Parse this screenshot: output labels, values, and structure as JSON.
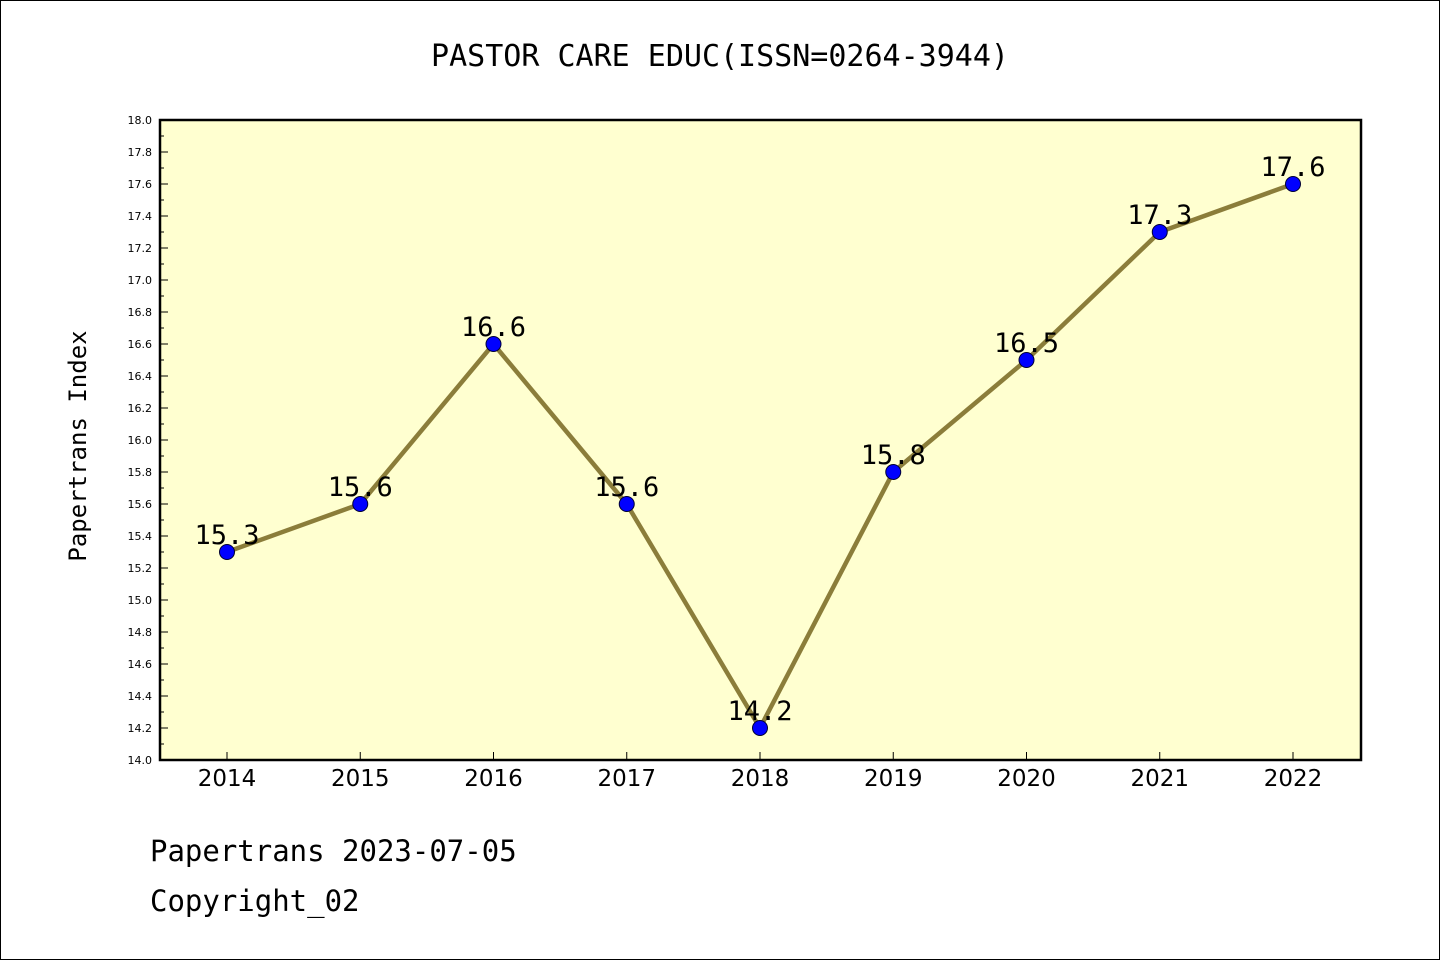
{
  "chart_data": {
    "type": "line",
    "title": "PASTOR CARE EDUC(ISSN=0264-3944)",
    "xlabel": "",
    "ylabel": "Papertrans Index",
    "categories": [
      "2014",
      "2015",
      "2016",
      "2017",
      "2018",
      "2019",
      "2020",
      "2021",
      "2022"
    ],
    "series": [
      {
        "values": [
          15.3,
          15.6,
          16.6,
          15.6,
          14.2,
          15.8,
          16.5,
          17.3,
          17.6
        ],
        "labels": [
          "15.3",
          "15.6",
          "16.6",
          "15.6",
          "14.2",
          "15.8",
          "16.5",
          "17.3",
          "17.6"
        ],
        "line_color": "#8b7d3a",
        "marker_color": "#0000ff"
      }
    ],
    "ylim": [
      14.0,
      18.0
    ],
    "y_ticks": [
      "14.0",
      "14.2",
      "14.4",
      "14.6",
      "14.8",
      "15.0",
      "15.2",
      "15.4",
      "15.6",
      "15.8",
      "16.0",
      "16.2",
      "16.4",
      "16.6",
      "16.8",
      "17.0",
      "17.2",
      "17.4",
      "17.6",
      "17.8",
      "18.0"
    ],
    "grid": false,
    "legend": "none",
    "plot_background": "#ffffd0"
  },
  "footer": {
    "line1": "Papertrans 2023-07-05",
    "line2": "Copyright_02"
  }
}
